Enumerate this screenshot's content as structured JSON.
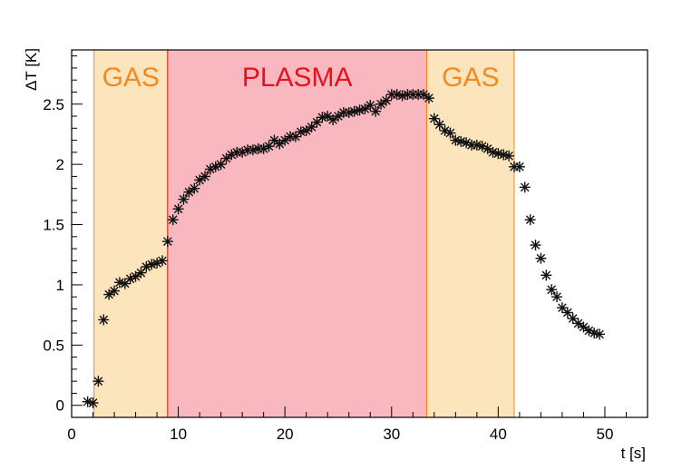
{
  "chart_data": {
    "type": "scatter",
    "title": "",
    "xlabel": "t [s]",
    "ylabel": "ΔT [K]",
    "xlim": [
      0,
      54
    ],
    "ylim": [
      -0.1,
      2.95
    ],
    "x_ticks": [
      0,
      10,
      20,
      30,
      40,
      50
    ],
    "y_ticks": [
      0,
      0.5,
      1,
      1.5,
      2,
      2.5
    ],
    "x_tick_labels": [
      "0",
      "10",
      "20",
      "30",
      "40",
      "50"
    ],
    "y_tick_labels": [
      "0",
      "0.5",
      "1",
      "1.5",
      "2",
      "2.5"
    ],
    "grid": false,
    "legend": "none",
    "marker": "asterisk",
    "marker_color": "#111111",
    "regions": [
      {
        "label": "GAS",
        "x_start": 2.1,
        "x_end": 9.0,
        "fill": "#fce4bd",
        "edge": "#f28a1e",
        "label_color": "#f28a1e"
      },
      {
        "label": "PLASMA",
        "x_start": 9.0,
        "x_end": 33.3,
        "fill": "#f9b8bf",
        "edge": "#e8121e",
        "label_color": "#e8121e"
      },
      {
        "label": "GAS",
        "x_start": 33.3,
        "x_end": 41.5,
        "fill": "#fce4bd",
        "edge": "#f28a1e",
        "label_color": "#f28a1e"
      }
    ],
    "x": [
      1.5,
      2.0,
      2.5,
      3.0,
      3.5,
      4.0,
      4.5,
      5.0,
      5.5,
      6.0,
      6.5,
      7.0,
      7.5,
      8.0,
      8.5,
      9.0,
      9.5,
      10.0,
      10.5,
      11.0,
      11.5,
      12.0,
      12.5,
      13.0,
      13.5,
      14.0,
      14.5,
      15.0,
      15.5,
      16.0,
      16.5,
      17.0,
      17.5,
      18.0,
      18.5,
      19.0,
      19.5,
      20.0,
      20.5,
      21.0,
      21.5,
      22.0,
      22.5,
      23.0,
      23.5,
      24.0,
      24.5,
      25.0,
      25.5,
      26.0,
      26.5,
      27.0,
      27.5,
      28.0,
      28.5,
      29.0,
      29.5,
      30.0,
      30.5,
      31.0,
      31.5,
      32.0,
      32.5,
      33.0,
      33.5,
      34.0,
      34.5,
      35.0,
      35.5,
      36.0,
      36.5,
      37.0,
      37.5,
      38.0,
      38.5,
      39.0,
      39.5,
      40.0,
      40.5,
      41.0,
      41.5,
      42.0,
      42.5,
      43.0,
      43.5,
      44.0,
      44.5,
      45.0,
      45.5,
      46.0,
      46.5,
      47.0,
      47.5,
      48.0,
      48.5,
      49.0,
      49.5
    ],
    "y": [
      0.03,
      0.02,
      0.2,
      0.71,
      0.92,
      0.95,
      1.02,
      1.01,
      1.05,
      1.07,
      1.1,
      1.15,
      1.17,
      1.18,
      1.2,
      1.36,
      1.54,
      1.63,
      1.71,
      1.77,
      1.8,
      1.87,
      1.9,
      1.96,
      1.98,
      2.0,
      2.05,
      2.08,
      2.1,
      2.1,
      2.12,
      2.12,
      2.13,
      2.13,
      2.15,
      2.2,
      2.17,
      2.2,
      2.23,
      2.23,
      2.27,
      2.28,
      2.31,
      2.35,
      2.39,
      2.4,
      2.37,
      2.4,
      2.43,
      2.43,
      2.44,
      2.45,
      2.46,
      2.49,
      2.44,
      2.5,
      2.53,
      2.58,
      2.58,
      2.57,
      2.58,
      2.58,
      2.58,
      2.58,
      2.55,
      2.38,
      2.33,
      2.28,
      2.26,
      2.2,
      2.19,
      2.18,
      2.16,
      2.16,
      2.15,
      2.13,
      2.1,
      2.09,
      2.08,
      2.07,
      1.98,
      1.98,
      1.81,
      1.54,
      1.33,
      1.22,
      1.08,
      0.96,
      0.9,
      0.81,
      0.77,
      0.72,
      0.68,
      0.65,
      0.62,
      0.6,
      0.59
    ]
  }
}
